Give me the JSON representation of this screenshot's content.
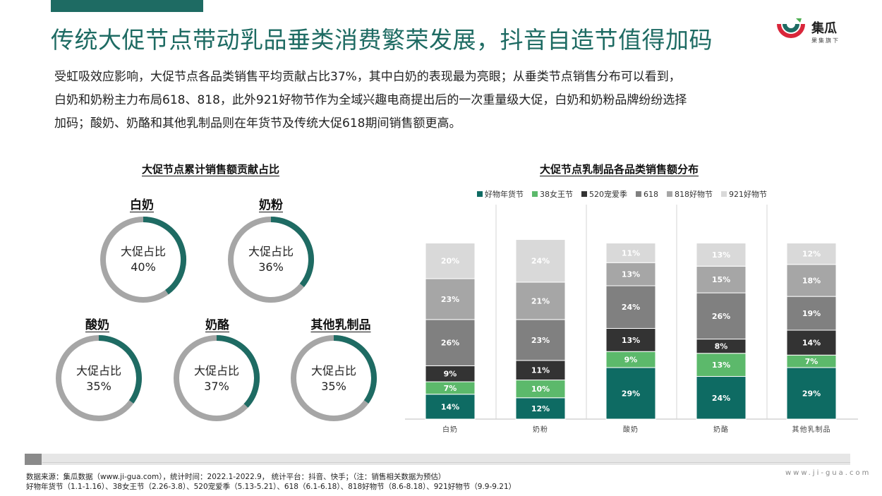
{
  "title": "传统大促节点带动乳品垂类消费繁荣发展，抖音自造节值得加码",
  "logo": {
    "name": "集瓜",
    "sub": "果集旗下"
  },
  "intro": {
    "line1": "受虹吸效应影响，大促节点各品类销售平均贡献占比37%，其中白奶的表现最为亮眼；从垂类节点销售分布可以看到，",
    "line2": "白奶和奶粉主力布局618、818，此外921好物节作为全域兴趣电商提出后的一次重量级大促，白奶和奶粉品牌纷纷选择",
    "line3": "加码；酸奶、奶酪和其他乳制品则在年货节及传统大促618期间销售额更高。"
  },
  "colors": {
    "accent": "#1e6b63",
    "ring_track": "#a6a6a6",
    "series": [
      "#0e6b63",
      "#5cb96b",
      "#333333",
      "#808080",
      "#a6a6a6",
      "#d9d9d9"
    ]
  },
  "donut_section": {
    "title": "大促节点累计销售额贡献占比",
    "center_label": "大促占比",
    "items": [
      {
        "name": "白奶",
        "value": 40,
        "display": "40%"
      },
      {
        "name": "奶粉",
        "value": 36,
        "display": "36%"
      },
      {
        "name": "酸奶",
        "value": 35,
        "display": "35%"
      },
      {
        "name": "奶酪",
        "value": 37,
        "display": "37%"
      },
      {
        "name": "其他乳制品",
        "value": 35,
        "display": "35%"
      }
    ]
  },
  "chart_data": {
    "type": "bar",
    "stacked": true,
    "percent": true,
    "title": "大促节点乳制品各品类销售额分布",
    "categories": [
      "白奶",
      "奶粉",
      "酸奶",
      "奶酪",
      "其他乳制品"
    ],
    "series": [
      {
        "name": "好物年货节",
        "values": [
          14,
          12,
          29,
          24,
          29
        ]
      },
      {
        "name": "38女王节",
        "values": [
          7,
          10,
          9,
          13,
          7
        ]
      },
      {
        "name": "520宠爱季",
        "values": [
          9,
          11,
          13,
          8,
          14
        ]
      },
      {
        "name": "618",
        "values": [
          26,
          23,
          24,
          26,
          19
        ]
      },
      {
        "name": "818好物节",
        "values": [
          23,
          21,
          13,
          15,
          18
        ]
      },
      {
        "name": "921好物节",
        "values": [
          20,
          24,
          11,
          13,
          12
        ]
      }
    ],
    "ylim": [
      0,
      100
    ],
    "legend": "top",
    "grid": false
  },
  "footer": {
    "line1": "数据来源：集瓜数据（www.ji-gua.com），统计时间：2022.1-2022.9，  统计平台：抖音、快手；（注：销售相关数据为预估）",
    "line2": "好物年货节（1.1-1.16）、38女王节（2.26-3.8）、520宠爱季（5.13-5.21）、618（6.1-6.18）、818好物节（8.6-8.18）、921好物节（9.9-9.21）"
  },
  "site_url": "www.ji-gua.com"
}
